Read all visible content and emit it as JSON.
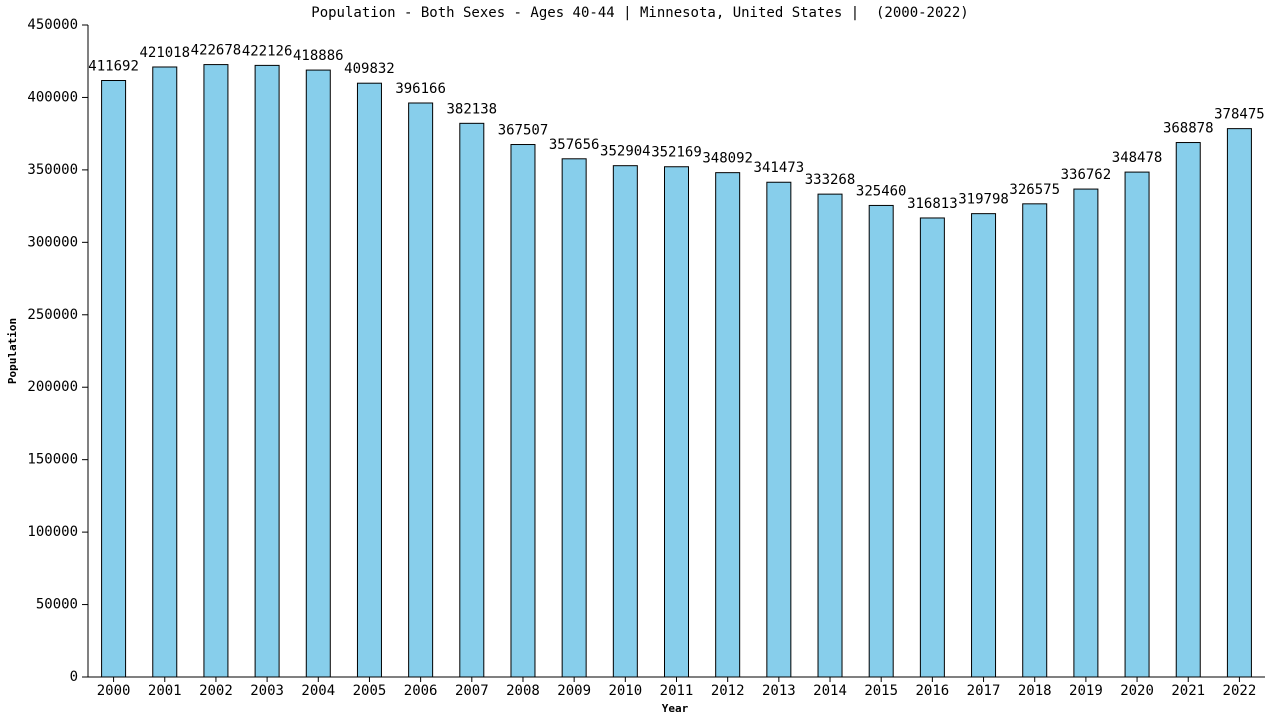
{
  "chart_data": {
    "type": "bar",
    "title": "Population - Both Sexes - Ages 40-44 | Minnesota, United States |  (2000-2022)",
    "x_label": "Year",
    "y_label": "Population",
    "categories": [
      "2000",
      "2001",
      "2002",
      "2003",
      "2004",
      "2005",
      "2006",
      "2007",
      "2008",
      "2009",
      "2010",
      "2011",
      "2012",
      "2013",
      "2014",
      "2015",
      "2016",
      "2017",
      "2018",
      "2019",
      "2020",
      "2021",
      "2022"
    ],
    "values": [
      411692,
      421018,
      422678,
      422126,
      418886,
      409832,
      396166,
      382138,
      367507,
      357656,
      352904,
      352169,
      348092,
      341473,
      333268,
      325460,
      316813,
      319798,
      326575,
      336762,
      348478,
      368878,
      378475
    ],
    "color": "#87ceeb",
    "ylim": [
      0,
      450000
    ],
    "yticks": [
      0,
      50000,
      100000,
      150000,
      200000,
      250000,
      300000,
      350000,
      400000,
      450000
    ]
  }
}
